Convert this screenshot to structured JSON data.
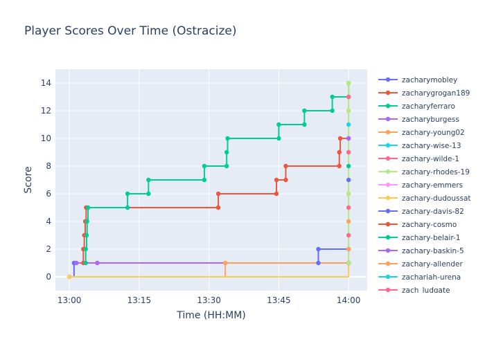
{
  "chart_data": {
    "type": "line",
    "line_shape": "step",
    "title": "Player Scores Over Time (Ostracize)",
    "xlabel": "Time (HH:MM)",
    "ylabel": "Score",
    "xlim": [
      "12:57",
      "14:04"
    ],
    "ylim": [
      -1,
      15
    ],
    "x_ticks": [
      "13:00",
      "13:15",
      "13:30",
      "13:45",
      "14:00"
    ],
    "y_ticks": [
      0,
      2,
      4,
      6,
      8,
      10,
      12,
      14
    ],
    "grid": true,
    "legend_position": "right",
    "plot_background": "#e5ecf6",
    "series": [
      {
        "name": "zacharymobley",
        "color": "#636efa",
        "points": [
          [
            "13:00",
            0
          ],
          [
            "13:01",
            1
          ],
          [
            "13:53.5",
            1
          ],
          [
            "13:53.5",
            2
          ],
          [
            "14:00",
            2
          ]
        ]
      },
      {
        "name": "zacharygrogan189",
        "color": "#ef553b",
        "points": [
          [
            "13:03",
            1
          ],
          [
            "13:03",
            2
          ],
          [
            "13:03.2",
            3
          ],
          [
            "13:03.4",
            4
          ],
          [
            "13:03.6",
            5
          ],
          [
            "13:32",
            5
          ],
          [
            "13:32",
            6
          ],
          [
            "13:44.5",
            6
          ],
          [
            "13:44.5",
            7
          ],
          [
            "13:46.5",
            7
          ],
          [
            "13:46.5",
            8
          ],
          [
            "13:58",
            8
          ],
          [
            "13:58",
            9
          ],
          [
            "13:58.2",
            10
          ],
          [
            "14:00",
            10
          ]
        ]
      },
      {
        "name": "zacharyferraro",
        "color": "#00cc96",
        "points": [
          [
            "13:03.5",
            1
          ],
          [
            "13:03.5",
            2
          ],
          [
            "13:03.7",
            3
          ],
          [
            "13:03.8",
            4
          ],
          [
            "13:04",
            5
          ],
          [
            "13:12.5",
            5
          ],
          [
            "13:12.5",
            6
          ],
          [
            "13:17",
            6
          ],
          [
            "13:17",
            7
          ],
          [
            "13:29",
            7
          ],
          [
            "13:29",
            8
          ],
          [
            "13:33.8",
            8
          ],
          [
            "13:33.8",
            9
          ],
          [
            "13:34",
            10
          ],
          [
            "13:45",
            10
          ],
          [
            "13:45",
            11
          ],
          [
            "13:50.5",
            11
          ],
          [
            "13:50.5",
            12
          ],
          [
            "13:56.5",
            12
          ],
          [
            "13:56.5",
            13
          ],
          [
            "14:00",
            13
          ],
          [
            "14:00",
            14
          ]
        ]
      },
      {
        "name": "zacharyburgess",
        "color": "#ab63fa",
        "points": [
          [
            "13:01.5",
            1
          ],
          [
            "13:06",
            1
          ],
          [
            "14:00",
            1
          ]
        ]
      },
      {
        "name": "zachary-young02",
        "color": "#ffa15a",
        "points": [
          [
            "13:00",
            0
          ],
          [
            "13:33.5",
            1
          ],
          [
            "14:00",
            1
          ]
        ]
      },
      {
        "name": "zachary-wise-13",
        "color": "#19d3f3",
        "points": [
          [
            "14:00",
            1
          ]
        ]
      },
      {
        "name": "zachary-wilde-1",
        "color": "#ff6692",
        "points": [
          [
            "14:00",
            1
          ]
        ]
      },
      {
        "name": "zachary-rhodes-19",
        "color": "#b6e880",
        "points": [
          [
            "14:00",
            1
          ],
          [
            "14:00",
            14
          ]
        ]
      },
      {
        "name": "zachary-emmers",
        "color": "#ff97ff",
        "points": [
          [
            "14:00",
            1
          ]
        ]
      },
      {
        "name": "zachary-dudoussat",
        "color": "#fecb52",
        "points": [
          [
            "13:00",
            0
          ],
          [
            "14:00",
            1
          ]
        ]
      },
      {
        "name": "zachary-davis-82",
        "color": "#636efa",
        "points": [
          [
            "14:00",
            1
          ]
        ]
      },
      {
        "name": "zachary-cosmo",
        "color": "#ef553b",
        "points": [
          [
            "14:00",
            1
          ]
        ]
      },
      {
        "name": "zachary-belair-1",
        "color": "#00cc96",
        "points": [
          [
            "14:00",
            1
          ]
        ]
      },
      {
        "name": "zachary-baskin-5",
        "color": "#ab63fa",
        "points": [
          [
            "14:00",
            1
          ]
        ]
      },
      {
        "name": "zachary-allender",
        "color": "#ffa15a",
        "points": [
          [
            "14:00",
            1
          ]
        ]
      },
      {
        "name": "zachariah-urena",
        "color": "#19d3f3",
        "points": [
          [
            "14:00",
            1
          ]
        ]
      },
      {
        "name": "zach_ludgate",
        "color": "#ff6692",
        "points": [
          [
            "14:00",
            1
          ]
        ]
      }
    ],
    "end_markers": [
      {
        "x": "14:00",
        "y": 1,
        "color": "#b6e880"
      },
      {
        "x": "14:00",
        "y": 2,
        "color": "#ffa15a"
      },
      {
        "x": "14:00",
        "y": 3,
        "color": "#ff6692"
      },
      {
        "x": "14:00",
        "y": 4,
        "color": "#ffa15a"
      },
      {
        "x": "14:00",
        "y": 5,
        "color": "#ff6692"
      },
      {
        "x": "14:00",
        "y": 6,
        "color": "#b6e880"
      },
      {
        "x": "14:00",
        "y": 7,
        "color": "#636efa"
      },
      {
        "x": "14:00",
        "y": 8,
        "color": "#00cc96"
      },
      {
        "x": "14:00",
        "y": 9,
        "color": "#ff6692"
      },
      {
        "x": "14:00",
        "y": 10,
        "color": "#ab63fa"
      },
      {
        "x": "14:00",
        "y": 11,
        "color": "#19d3f3"
      },
      {
        "x": "14:00",
        "y": 12,
        "color": "#b6e880"
      },
      {
        "x": "14:00",
        "y": 13,
        "color": "#ff6692"
      },
      {
        "x": "14:00",
        "y": 14,
        "color": "#b6e880"
      }
    ]
  }
}
